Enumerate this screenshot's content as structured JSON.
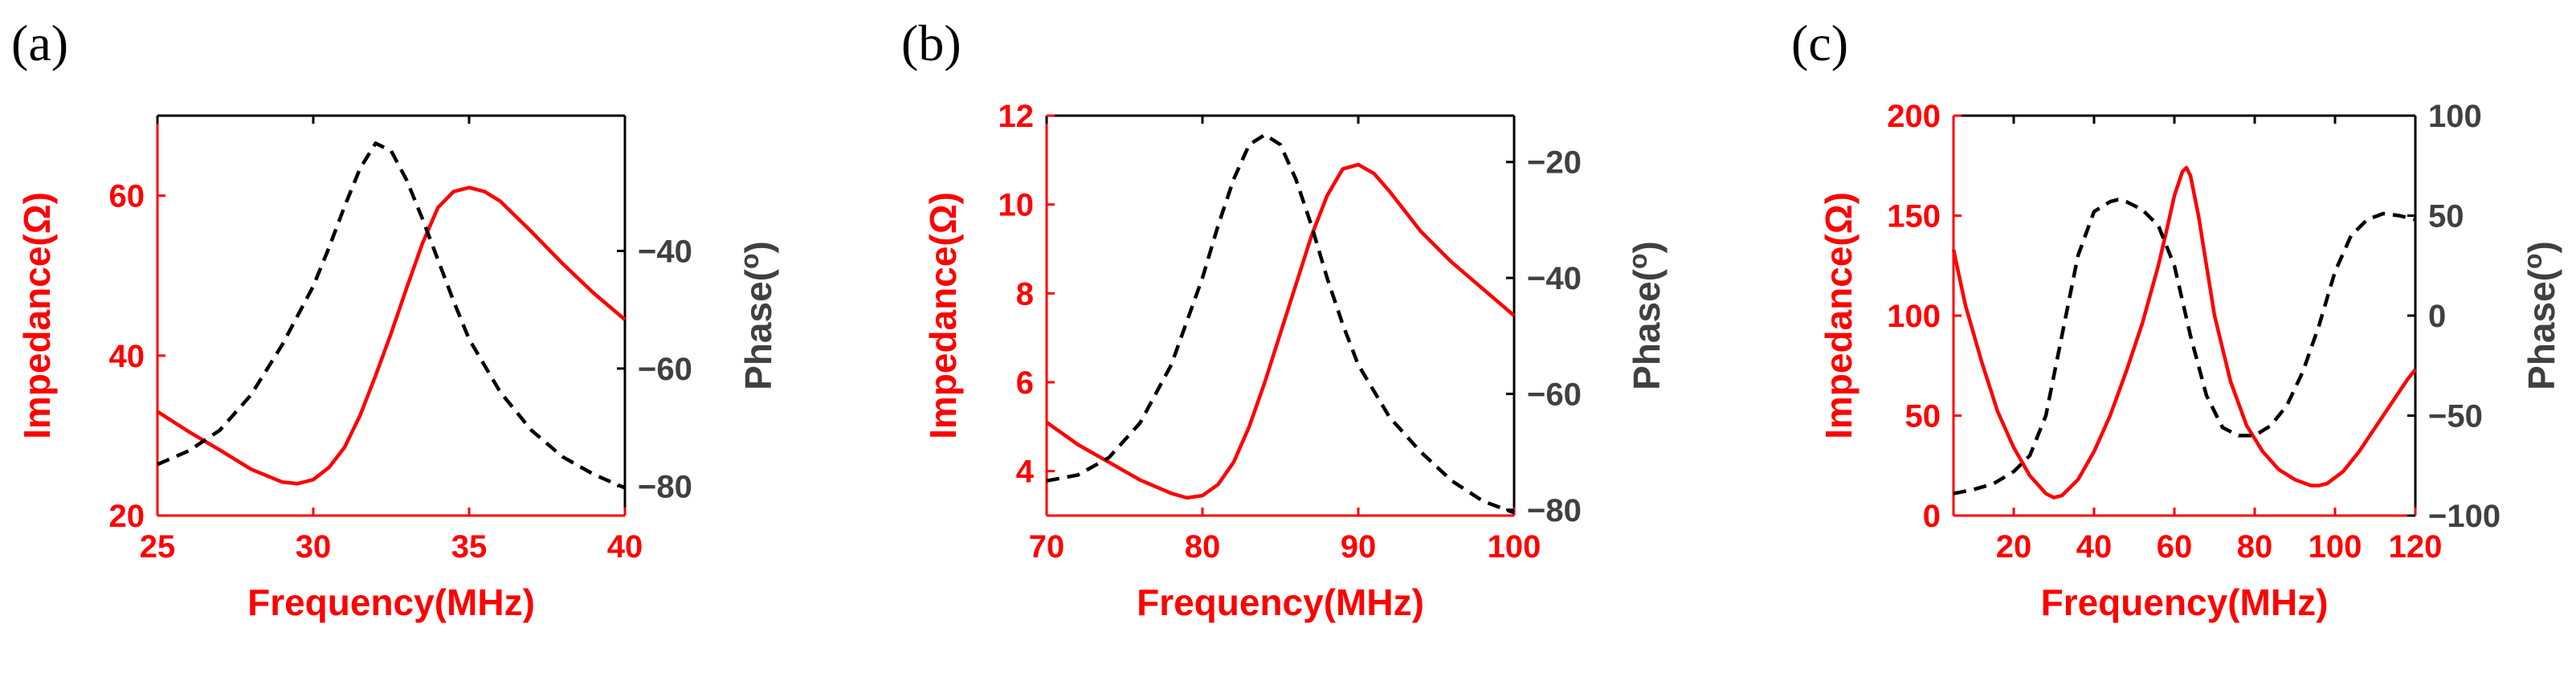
{
  "figure": {
    "background": "#ffffff"
  },
  "colors": {
    "impedance": "#ff0000",
    "phase": "#000000",
    "phase_axis": "#404040",
    "frame": "#000000"
  },
  "chart_data": [
    {
      "type": "line",
      "panel_label": "(a)",
      "xlabel": "Frequency(MHz)",
      "ylabel_left": "Impedance(Ω)",
      "ylabel_right": "Phase(o)",
      "xlim": [
        25,
        40
      ],
      "ylim_left": [
        20,
        70
      ],
      "ylim_right": [
        -85,
        -17
      ],
      "xticks": [
        25,
        30,
        35,
        40
      ],
      "yticks_left": [
        20,
        40,
        60
      ],
      "yticks_right": [
        -80,
        -60,
        -40
      ],
      "grid": false,
      "series": [
        {
          "name": "Impedance",
          "axis": "left",
          "style": "solid",
          "x": [
            25,
            26,
            27,
            28,
            29,
            29.5,
            30,
            30.5,
            31,
            31.5,
            32,
            32.5,
            33,
            33.5,
            34,
            34.5,
            35,
            35.5,
            36,
            37,
            38,
            39,
            40
          ],
          "y": [
            33,
            30.5,
            28.2,
            25.8,
            24.2,
            24,
            24.5,
            26,
            28.5,
            32.5,
            37.5,
            42.8,
            48.5,
            54,
            58.5,
            60.5,
            61,
            60.5,
            59.3,
            55.5,
            51.5,
            47.8,
            44.5
          ]
        },
        {
          "name": "Phase",
          "axis": "right",
          "style": "dashed",
          "x": [
            25,
            26,
            27,
            28,
            29,
            30,
            30.5,
            31,
            31.5,
            32,
            32.5,
            33,
            33.5,
            34,
            34.5,
            35,
            36,
            37,
            38,
            39,
            40
          ],
          "y": [
            -76.3,
            -74,
            -70.5,
            -64.5,
            -56,
            -46,
            -39.5,
            -32.5,
            -26,
            -21.7,
            -23,
            -28,
            -34.5,
            -41.5,
            -48.5,
            -55,
            -64,
            -70.5,
            -75,
            -78,
            -80.3
          ]
        }
      ]
    },
    {
      "type": "line",
      "panel_label": "(b)",
      "xlabel": "Frequency(MHz)",
      "ylabel_left": "Impedance(Ω)",
      "ylabel_right": "Phase(o)",
      "xlim": [
        70,
        100
      ],
      "ylim_left": [
        3,
        12
      ],
      "ylim_right": [
        -81,
        -12
      ],
      "xticks": [
        70,
        80,
        90,
        100
      ],
      "yticks_left": [
        4,
        6,
        8,
        10,
        12
      ],
      "yticks_right": [
        -80,
        -60,
        -40,
        -20
      ],
      "grid": false,
      "series": [
        {
          "name": "Impedance",
          "axis": "left",
          "style": "solid",
          "x": [
            70,
            72,
            74,
            76,
            78,
            79,
            80,
            81,
            82,
            83,
            84,
            85,
            86,
            87,
            88,
            89,
            90,
            91,
            92,
            94,
            96,
            98,
            100
          ],
          "y": [
            5.1,
            4.6,
            4.2,
            3.8,
            3.5,
            3.4,
            3.45,
            3.7,
            4.2,
            5,
            6,
            7.1,
            8.2,
            9.3,
            10.2,
            10.8,
            10.9,
            10.7,
            10.3,
            9.4,
            8.7,
            8.1,
            7.5
          ]
        },
        {
          "name": "Phase",
          "axis": "right",
          "style": "dashed",
          "x": [
            70,
            72,
            74,
            76,
            78,
            80,
            81,
            82,
            83,
            84,
            85,
            86,
            87,
            88,
            89,
            90,
            92,
            94,
            96,
            98,
            100
          ],
          "y": [
            -75,
            -74,
            -71,
            -65,
            -55,
            -40,
            -31,
            -23,
            -17,
            -15.3,
            -17,
            -23,
            -31,
            -40,
            -48,
            -55,
            -64,
            -70,
            -75,
            -78.5,
            -80.5
          ]
        }
      ]
    },
    {
      "type": "line",
      "panel_label": "(c)",
      "xlabel": "Frequency(MHz)",
      "ylabel_left": "Impedance(Ω)",
      "ylabel_right": "Phase(o)",
      "xlim": [
        5,
        120
      ],
      "ylim_left": [
        0,
        200
      ],
      "ylim_right": [
        -100,
        100
      ],
      "xticks": [
        20,
        40,
        60,
        80,
        100,
        120
      ],
      "yticks_left": [
        0,
        50,
        100,
        150,
        200
      ],
      "yticks_right": [
        -100,
        -50,
        0,
        50,
        100
      ],
      "grid": false,
      "series": [
        {
          "name": "Impedance",
          "axis": "left",
          "style": "solid",
          "x": [
            5,
            8,
            12,
            16,
            20,
            24,
            28,
            30,
            32,
            36,
            40,
            44,
            48,
            52,
            56,
            58,
            60,
            62,
            63,
            64,
            66,
            68,
            70,
            74,
            78,
            82,
            86,
            90,
            94,
            96,
            98,
            102,
            106,
            110,
            114,
            118,
            120
          ],
          "y": [
            133,
            105,
            77,
            52,
            34,
            20,
            11,
            9,
            10,
            18,
            32,
            50,
            72,
            96,
            125,
            142,
            160,
            172,
            174,
            170,
            150,
            125,
            100,
            67,
            45,
            32,
            23,
            18,
            15,
            15,
            16,
            22,
            32,
            44,
            56,
            68,
            73
          ]
        },
        {
          "name": "Phase",
          "axis": "right",
          "style": "dashed",
          "x": [
            5,
            10,
            15,
            20,
            24,
            28,
            32,
            36,
            40,
            44,
            46,
            48,
            52,
            56,
            60,
            64,
            68,
            72,
            76,
            80,
            84,
            88,
            92,
            96,
            100,
            104,
            108,
            112,
            116,
            120
          ],
          "y": [
            -89,
            -87,
            -84,
            -78,
            -70,
            -50,
            -10,
            30,
            52,
            57,
            58,
            57,
            53,
            45,
            25,
            -10,
            -40,
            -56,
            -60,
            -60,
            -55,
            -45,
            -28,
            -5,
            22,
            40,
            48,
            51,
            50,
            48
          ]
        }
      ]
    }
  ]
}
